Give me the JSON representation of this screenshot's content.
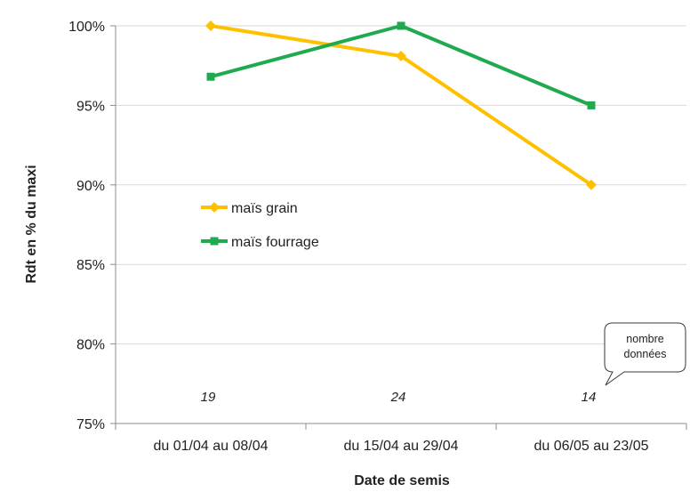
{
  "chart_data": {
    "type": "line",
    "title": "",
    "xlabel": "Date de semis",
    "ylabel": "Rdt en % du maxi",
    "categories": [
      "du 01/04 au 08/04",
      "du 15/04 au 29/04",
      "du 06/05 au 23/05"
    ],
    "ylim": [
      75,
      100
    ],
    "yticks": [
      "75%",
      "80%",
      "85%",
      "90%",
      "95%",
      "100%"
    ],
    "grid": true,
    "legend_position": "center-left",
    "series": [
      {
        "name": "maïs grain",
        "values": [
          100,
          98.1,
          90
        ],
        "color": "#FFC000",
        "marker": "diamond"
      },
      {
        "name": "maïs fourrage",
        "values": [
          96.8,
          100,
          95
        ],
        "color": "#1FAA4F",
        "marker": "square"
      }
    ],
    "counts": [
      "19",
      "24",
      "14"
    ],
    "callout": {
      "lines": [
        "nombre",
        "données"
      ]
    }
  }
}
